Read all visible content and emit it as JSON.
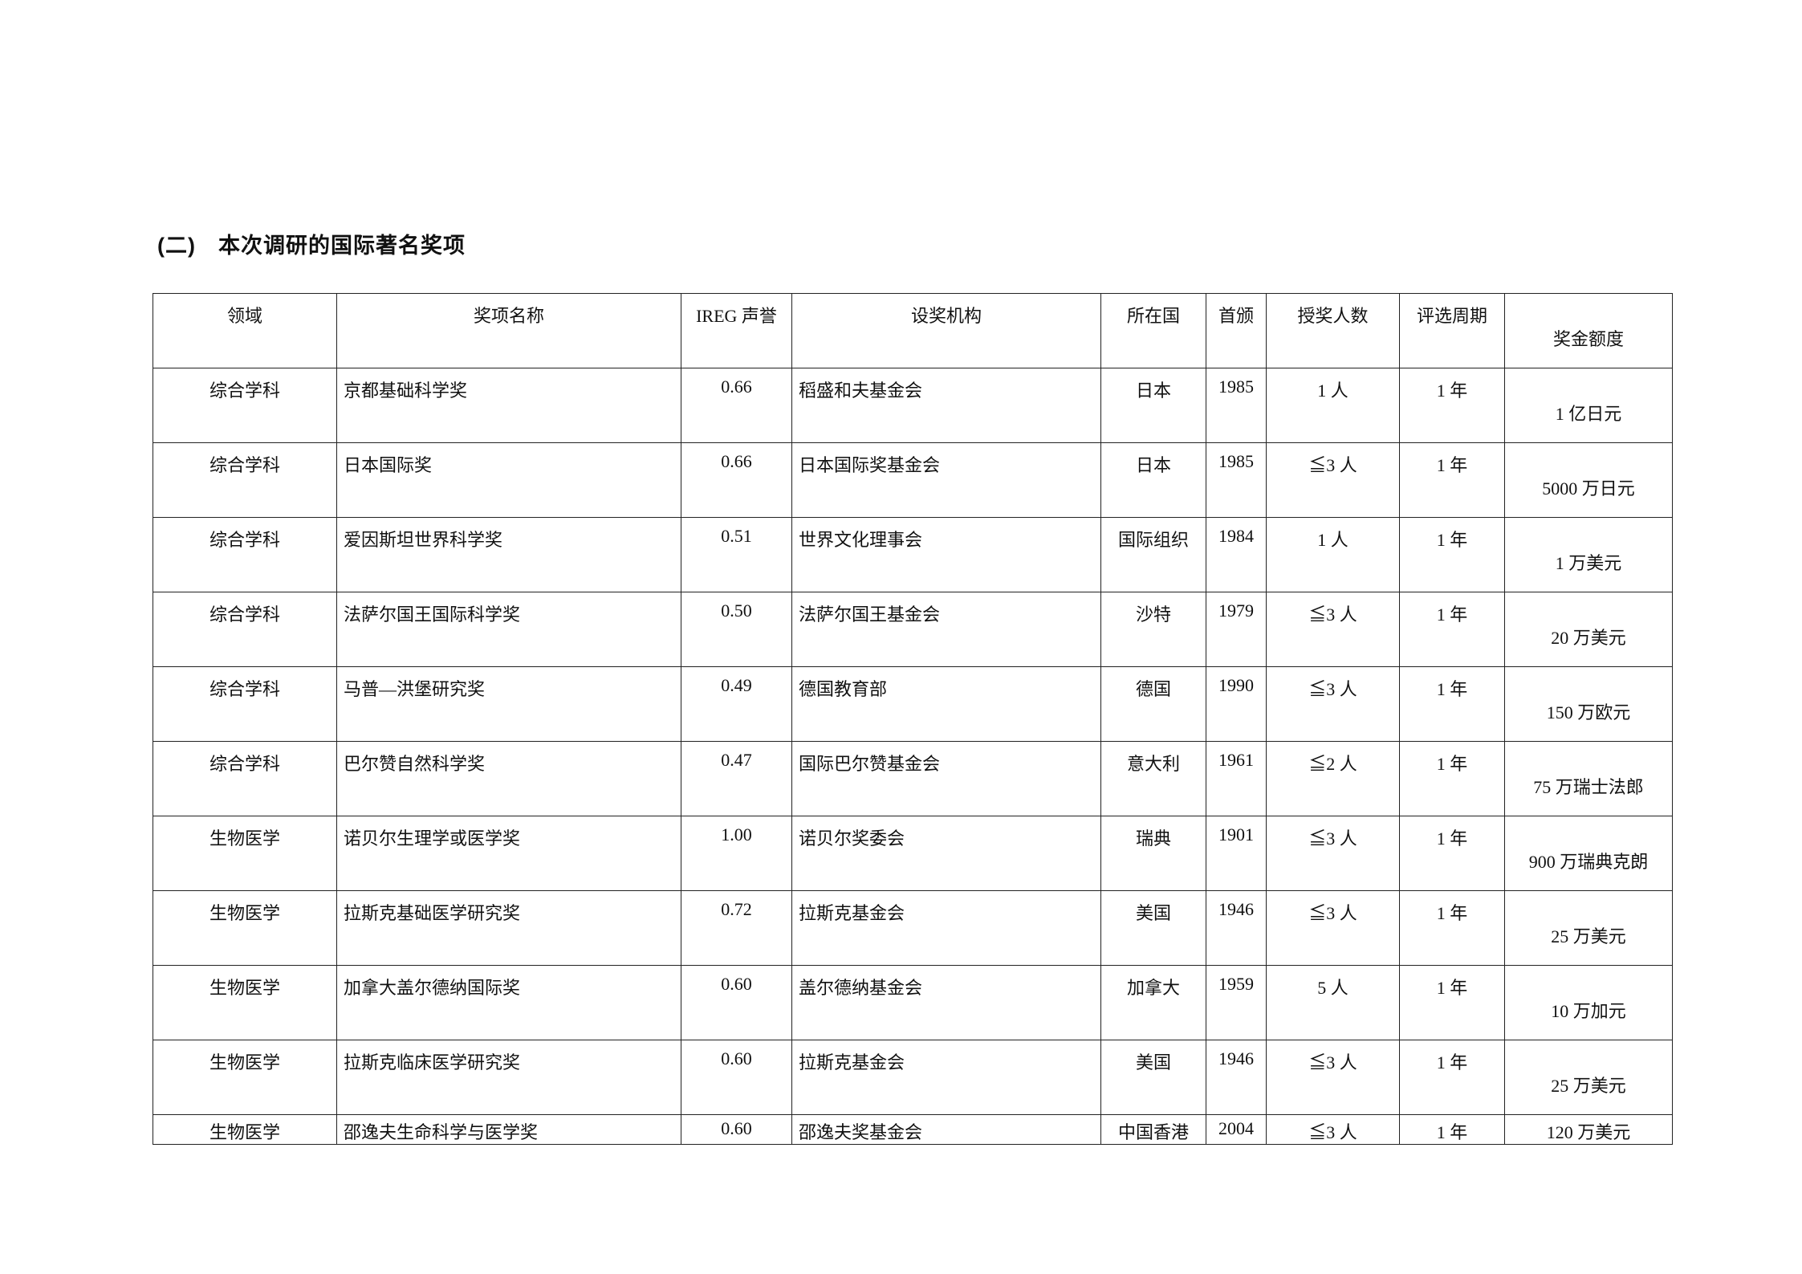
{
  "title": "(二)　本次调研的国际著名奖项",
  "headers": [
    "领域",
    "奖项名称",
    "IREG 声誉",
    "设奖机构",
    "所在国",
    "首颁",
    "授奖人数",
    "评选周期",
    "奖金额度"
  ],
  "rows": [
    [
      "综合学科",
      "京都基础科学奖",
      "0.66",
      "稻盛和夫基金会",
      "日本",
      "1985",
      "1 人",
      "1 年",
      "1 亿日元"
    ],
    [
      "综合学科",
      "日本国际奖",
      "0.66",
      "日本国际奖基金会",
      "日本",
      "1985",
      "≦3 人",
      "1 年",
      "5000 万日元"
    ],
    [
      "综合学科",
      "爱因斯坦世界科学奖",
      "0.51",
      "世界文化理事会",
      "国际组织",
      "1984",
      "1 人",
      "1 年",
      "1 万美元"
    ],
    [
      "综合学科",
      "法萨尔国王国际科学奖",
      "0.50",
      "法萨尔国王基金会",
      "沙特",
      "1979",
      "≦3 人",
      "1 年",
      "20 万美元"
    ],
    [
      "综合学科",
      "马普—洪堡研究奖",
      "0.49",
      "德国教育部",
      "德国",
      "1990",
      "≦3 人",
      "1 年",
      "150 万欧元"
    ],
    [
      "综合学科",
      "巴尔赞自然科学奖",
      "0.47",
      "国际巴尔赞基金会",
      "意大利",
      "1961",
      "≦2 人",
      "1 年",
      "75 万瑞士法郎"
    ],
    [
      "生物医学",
      "诺贝尔生理学或医学奖",
      "1.00",
      "诺贝尔奖委会",
      "瑞典",
      "1901",
      "≦3 人",
      "1 年",
      "900 万瑞典克朗"
    ],
    [
      "生物医学",
      "拉斯克基础医学研究奖",
      "0.72",
      "拉斯克基金会",
      "美国",
      "1946",
      "≦3 人",
      "1 年",
      "25 万美元"
    ],
    [
      "生物医学",
      "加拿大盖尔德纳国际奖",
      "0.60",
      "盖尔德纳基金会",
      "加拿大",
      "1959",
      "5 人",
      "1 年",
      "10 万加元"
    ],
    [
      "生物医学",
      "拉斯克临床医学研究奖",
      "0.60",
      "拉斯克基金会",
      "美国",
      "1946",
      "≦3 人",
      "1 年",
      "25 万美元"
    ],
    [
      "生物医学",
      "邵逸夫生命科学与医学奖",
      "0.60",
      "邵逸夫奖基金会",
      "中国香港",
      "2004",
      "≦3 人",
      "1 年",
      "120 万美元"
    ]
  ]
}
